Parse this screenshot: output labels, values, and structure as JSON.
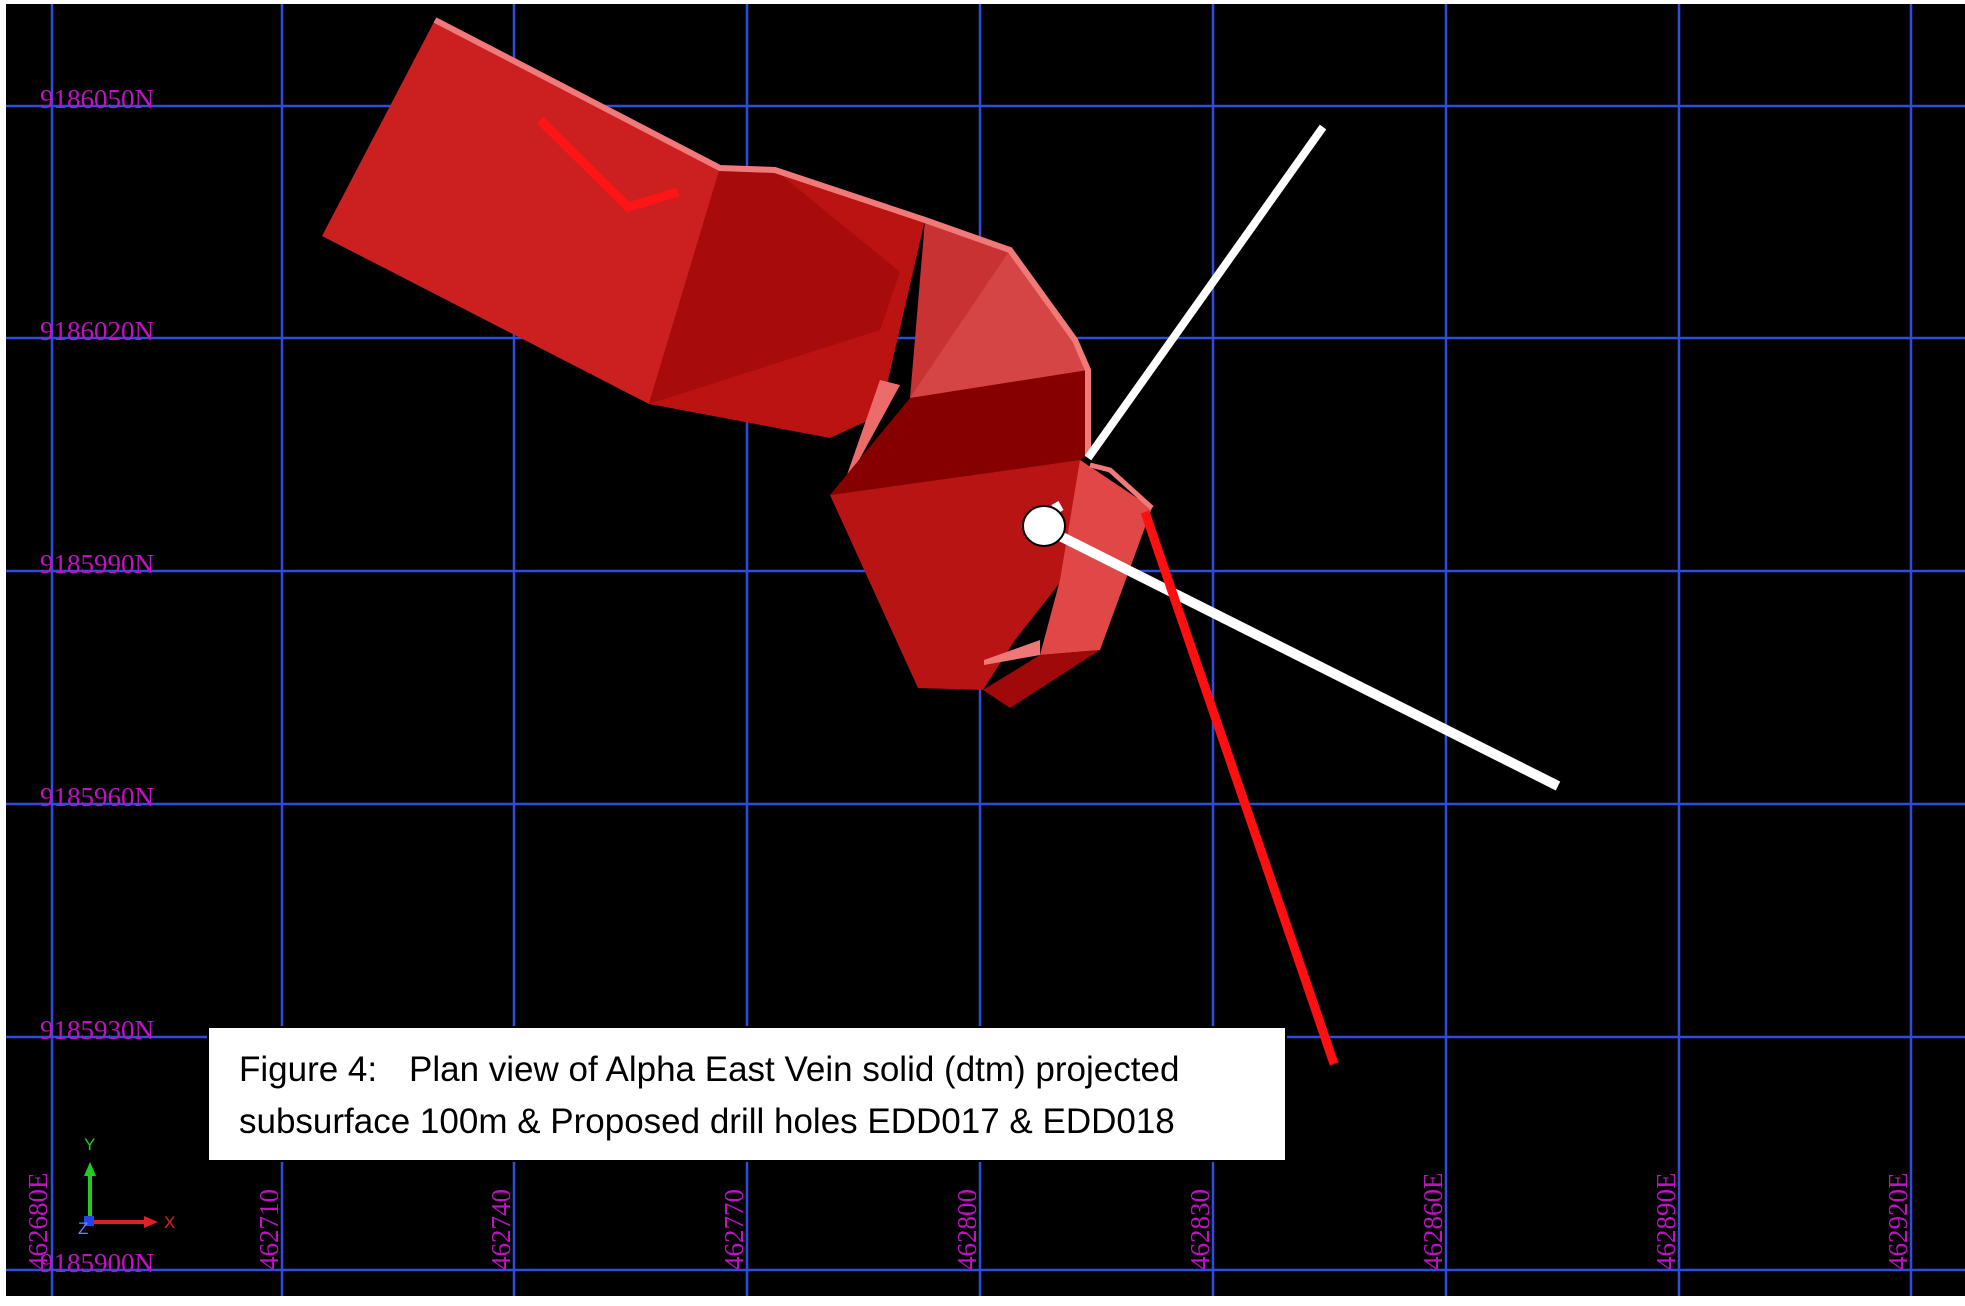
{
  "map": {
    "northings": [
      "9186050N",
      "9186020N",
      "9185990N",
      "9185960N",
      "9185930N",
      "9185900N"
    ],
    "eastings": [
      "462680E",
      "462710",
      "462740",
      "462770",
      "462800",
      "462830",
      "462860E",
      "462890E",
      "462920E"
    ],
    "orientation_axes": {
      "y_label": "Y",
      "x_label": "X",
      "z_label": "Z"
    },
    "colors": {
      "background": "#000000",
      "grid": "#2f4cdc",
      "labels": "#c012c4",
      "vein_solid": "#b51010",
      "drill_hole_edd017": "#ffffff",
      "drill_hole_edd018": "#ff1010"
    }
  },
  "caption": {
    "figure_label": "Figure 4:",
    "line1": "Plan view of Alpha East Vein solid (dtm) projected",
    "line2": "subsurface 100m & Proposed drill holes EDD017 & EDD018"
  }
}
